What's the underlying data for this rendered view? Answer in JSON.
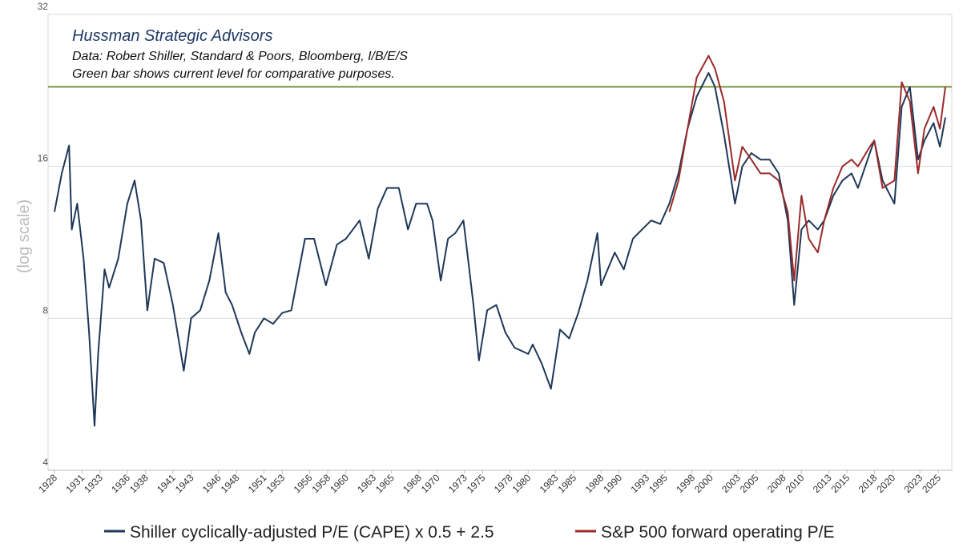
{
  "chart_data": {
    "type": "line",
    "title": "Hussman Strategic Advisors",
    "subtitle": "Data: Robert Shiller, Standard & Poors, Bloomberg, I/B/E/S",
    "note": "Green bar shows current level for comparative purposes.",
    "y_label": "(log scale)",
    "log_scale": true,
    "grid": true,
    "legend": "bottom",
    "ylim": [
      4,
      32
    ],
    "yticks": [
      4,
      8,
      16,
      32
    ],
    "xlim": [
      1927.3,
      2026.5
    ],
    "xticks": [
      1928,
      1931,
      1933,
      1936,
      1938,
      1941,
      1943,
      1946,
      1948,
      1951,
      1953,
      1956,
      1958,
      1960,
      1963,
      1965,
      1968,
      1970,
      1973,
      1975,
      1978,
      1980,
      1983,
      1985,
      1988,
      1990,
      1993,
      1995,
      1998,
      2000,
      2003,
      2005,
      2008,
      2010,
      2013,
      2015,
      2018,
      2020,
      2023,
      2025
    ],
    "reference_line": {
      "value": 23,
      "color": "#76933c"
    },
    "x": [
      1928.0,
      1928.8,
      1929.6,
      1929.9,
      1930.5,
      1931.2,
      1931.8,
      1932.4,
      1932.8,
      1933.5,
      1934.0,
      1935.0,
      1936.0,
      1936.8,
      1937.5,
      1938.2,
      1939.0,
      1940.0,
      1941.0,
      1942.2,
      1943.0,
      1944.0,
      1945.0,
      1946.0,
      1946.8,
      1947.5,
      1948.5,
      1949.4,
      1950.0,
      1951.0,
      1952.0,
      1953.0,
      1954.0,
      1955.5,
      1956.5,
      1957.8,
      1959.0,
      1960.0,
      1961.5,
      1962.5,
      1963.5,
      1964.5,
      1965.8,
      1966.8,
      1967.7,
      1968.9,
      1969.5,
      1970.4,
      1971.2,
      1972.0,
      1972.9,
      1974.0,
      1974.6,
      1975.5,
      1976.5,
      1977.5,
      1978.5,
      1980.0,
      1980.5,
      1981.5,
      1982.5,
      1983.5,
      1984.5,
      1985.5,
      1986.5,
      1987.6,
      1988.0,
      1989.5,
      1990.5,
      1991.5,
      1992.5,
      1993.5,
      1994.5,
      1995.5,
      1996.5,
      1997.5,
      1998.5,
      1999.8,
      2000.5,
      2001.5,
      2002.7,
      2003.5,
      2004.5,
      2005.5,
      2006.5,
      2007.5,
      2008.5,
      2009.2,
      2010.0,
      2010.8,
      2011.8,
      2012.5,
      2013.5,
      2014.5,
      2015.5,
      2016.2,
      2017.5,
      2018.0,
      2018.9,
      2020.2,
      2021.0,
      2021.9,
      2022.8,
      2023.5,
      2024.5,
      2025.2,
      2025.8
    ],
    "series": [
      {
        "name": "Shiller cyclically-adjusted P/E (CAPE) x 0.5 + 2.5",
        "color": "#1f3858",
        "values": [
          13.0,
          15.5,
          17.6,
          12.0,
          13.5,
          10.5,
          7.5,
          4.9,
          6.8,
          10.0,
          9.2,
          10.5,
          13.5,
          15.0,
          12.5,
          8.3,
          10.5,
          10.3,
          8.5,
          6.3,
          8.0,
          8.3,
          9.5,
          11.8,
          9.0,
          8.5,
          7.5,
          6.8,
          7.5,
          8.0,
          7.8,
          8.2,
          8.3,
          11.5,
          11.5,
          9.3,
          11.2,
          11.5,
          12.5,
          10.5,
          13.2,
          14.5,
          14.5,
          12.0,
          13.5,
          13.5,
          12.5,
          9.5,
          11.5,
          11.8,
          12.5,
          8.5,
          6.6,
          8.3,
          8.5,
          7.5,
          7.0,
          6.8,
          7.1,
          6.5,
          5.8,
          7.6,
          7.3,
          8.2,
          9.5,
          11.8,
          9.3,
          10.8,
          10.0,
          11.5,
          12.0,
          12.5,
          12.3,
          13.5,
          15.5,
          19.0,
          22.0,
          24.5,
          23.0,
          18.5,
          13.5,
          16.0,
          17.0,
          16.5,
          16.5,
          15.5,
          12.5,
          8.5,
          12.0,
          12.5,
          12.0,
          12.5,
          14.0,
          15.0,
          15.5,
          14.5,
          17.0,
          18.0,
          15.0,
          13.5,
          21.0,
          23.0,
          16.5,
          18.0,
          19.5,
          17.5,
          20.0
        ]
      },
      {
        "name": "S&P 500 forward operating P/E",
        "color": "#9b2a2a",
        "values": [
          null,
          null,
          null,
          null,
          null,
          null,
          null,
          null,
          null,
          null,
          null,
          null,
          null,
          null,
          null,
          null,
          null,
          null,
          null,
          null,
          null,
          null,
          null,
          null,
          null,
          null,
          null,
          null,
          null,
          null,
          null,
          null,
          null,
          null,
          null,
          null,
          null,
          null,
          null,
          null,
          null,
          null,
          null,
          null,
          null,
          null,
          null,
          null,
          null,
          null,
          null,
          null,
          null,
          null,
          null,
          null,
          null,
          null,
          null,
          null,
          null,
          null,
          null,
          null,
          null,
          null,
          null,
          null,
          null,
          null,
          null,
          null,
          null,
          13.0,
          15.0,
          19.0,
          24.0,
          26.5,
          25.0,
          21.5,
          15.0,
          17.5,
          16.5,
          15.5,
          15.5,
          15.0,
          13.0,
          9.5,
          14.0,
          11.5,
          10.8,
          12.5,
          14.5,
          16.0,
          16.5,
          16.0,
          17.5,
          18.0,
          14.5,
          15.0,
          23.5,
          21.5,
          15.5,
          19.0,
          21.0,
          19.0,
          23.0
        ]
      }
    ]
  }
}
